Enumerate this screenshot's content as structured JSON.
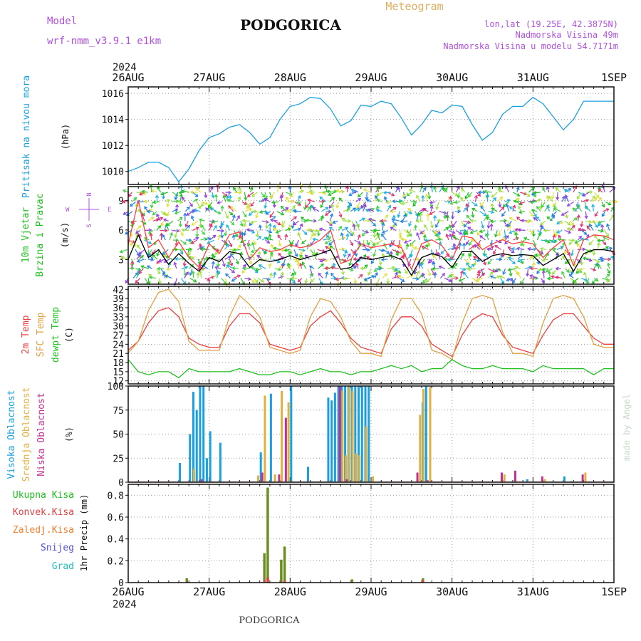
{
  "header": {
    "model_label": "Model",
    "model_name": "wrf-nmm_v3.9.1 e1km",
    "city": "PODGORICA",
    "meteogram": "Meteogram",
    "coords": "lon,lat (19.25E, 42.3875N)",
    "altitude": "Nadmorska Visina 49m",
    "model_altitude": "Nadmorska Visina u modelu 54.7171m",
    "footer_city": "PODGORICA",
    "credit": "made by Angel"
  },
  "colors": {
    "pressure": "#1aa0e0",
    "wind_speed": "#000000",
    "wind_gust": "#ff4040",
    "temp2m": "#e84040",
    "sfc_temp": "#e0a040",
    "dewpt": "#20c020",
    "high_cloud": "#1aa0e0",
    "mid_cloud": "#e0b040",
    "low_cloud": "#c03090",
    "precip_total": "#6a8f20",
    "convective": "#e04040",
    "frozen": "#f08030",
    "snow": "#5050e0",
    "graupel": "#20c0c0",
    "ylabel_pressure": "#1aa0e0",
    "ylabel_wind": "#20c020",
    "ylabel_legend_violet": "#b050e0"
  },
  "chart_data": [
    {
      "type": "line",
      "panel": "pressure",
      "ylabel_lines": [
        "Pritisak na nivou mora"
      ],
      "unit": "(hPa)",
      "yticks": [
        1010,
        1012,
        1014,
        1016
      ],
      "ylim": [
        1009,
        1016.5
      ],
      "x_labels": [
        "26AUG",
        "27AUG",
        "28AUG",
        "29AUG",
        "30AUG",
        "31AUG",
        "1SEP"
      ],
      "year": "2024",
      "x_hours": [
        0,
        3,
        6,
        9,
        12,
        15,
        18,
        21,
        24,
        27,
        30,
        33,
        36,
        39,
        42,
        45,
        48,
        51,
        54,
        57,
        60,
        63,
        66,
        69,
        72,
        75,
        78,
        81,
        84,
        87,
        90,
        93,
        96,
        99,
        102,
        105,
        108,
        111,
        114,
        117,
        120,
        123,
        126,
        129,
        132,
        135,
        138,
        141,
        144
      ],
      "series": [
        {
          "values": [
            1010.0,
            1010.3,
            1010.7,
            1010.7,
            1010.3,
            1009.2,
            1010.2,
            1011.6,
            1012.6,
            1012.9,
            1013.4,
            1013.6,
            1013.0,
            1012.1,
            1012.6,
            1014.0,
            1015.0,
            1015.2,
            1015.7,
            1015.6,
            1014.8,
            1013.5,
            1013.9,
            1015.1,
            1015.0,
            1015.4,
            1015.2,
            1014.1,
            1012.8,
            1013.6,
            1014.7,
            1014.5,
            1015.1,
            1015.0,
            1013.6,
            1012.4,
            1013.0,
            1014.4,
            1015.0,
            1015.0,
            1015.7,
            1015.2,
            1014.2,
            1013.2,
            1014.0,
            1015.4,
            1015.4,
            1015.4,
            1015.4
          ]
        }
      ]
    },
    {
      "type": "line",
      "panel": "wind",
      "ylabel_lines": [
        "10m Vjetar",
        "Brzina i Pravac"
      ],
      "unit": "(m/s)",
      "compass": [
        "N",
        "W",
        "E",
        "S"
      ],
      "yticks": [
        3,
        6,
        9
      ],
      "ylim": [
        0.5,
        10.4
      ],
      "x_hours": [
        0,
        3,
        6,
        9,
        12,
        15,
        18,
        21,
        24,
        27,
        30,
        33,
        36,
        39,
        42,
        45,
        48,
        51,
        54,
        57,
        60,
        63,
        66,
        69,
        72,
        75,
        78,
        81,
        84,
        87,
        90,
        93,
        96,
        99,
        102,
        105,
        108,
        111,
        114,
        117,
        120,
        123,
        126,
        129,
        132,
        135,
        138,
        141,
        144
      ],
      "series": [
        {
          "name": "speed",
          "values": [
            3.0,
            5.5,
            3.2,
            4.0,
            2.5,
            3.6,
            2.6,
            1.8,
            3.2,
            2.8,
            3.8,
            3.6,
            2.2,
            3.0,
            2.8,
            3.0,
            3.4,
            3.0,
            3.3,
            3.6,
            4.0,
            2.0,
            2.2,
            3.2,
            3.0,
            3.2,
            3.4,
            3.0,
            1.4,
            3.2,
            3.6,
            3.3,
            2.2,
            3.8,
            3.8,
            2.8,
            3.4,
            3.6,
            3.4,
            3.5,
            3.4,
            2.4,
            3.0,
            3.6,
            1.8,
            3.6,
            4.0,
            4.0,
            3.8
          ]
        },
        {
          "name": "gust",
          "values": [
            4.5,
            9.0,
            4.2,
            5.0,
            3.2,
            4.8,
            3.2,
            2.2,
            4.6,
            3.6,
            5.5,
            5.8,
            3.0,
            4.2,
            3.8,
            4.0,
            4.5,
            4.2,
            4.4,
            5.0,
            6.0,
            2.6,
            3.0,
            4.6,
            4.2,
            4.4,
            4.6,
            4.2,
            2.0,
            4.6,
            5.0,
            4.4,
            3.0,
            5.4,
            5.2,
            4.0,
            4.6,
            5.0,
            4.6,
            4.8,
            4.6,
            3.2,
            4.2,
            5.0,
            2.4,
            5.0,
            5.5,
            5.4,
            5.0
          ]
        }
      ]
    },
    {
      "type": "line",
      "panel": "temperature",
      "ylabel_lines": [
        "2m Temp",
        "SFC Temp",
        "dewpt Temp"
      ],
      "unit": "(C)",
      "yticks": [
        12,
        15,
        18,
        21,
        24,
        27,
        30,
        33,
        36,
        39,
        42
      ],
      "ylim": [
        11,
        43
      ],
      "x_hours": [
        0,
        3,
        6,
        9,
        12,
        15,
        18,
        21,
        24,
        27,
        30,
        33,
        36,
        39,
        42,
        45,
        48,
        51,
        54,
        57,
        60,
        63,
        66,
        69,
        72,
        75,
        78,
        81,
        84,
        87,
        90,
        93,
        96,
        99,
        102,
        105,
        108,
        111,
        114,
        117,
        120,
        123,
        126,
        129,
        132,
        135,
        138,
        141,
        144
      ],
      "series": [
        {
          "name": "2m Temp",
          "values": [
            22,
            25,
            31,
            35,
            36,
            33,
            26,
            24,
            23,
            23,
            30,
            34,
            34,
            31,
            24,
            23,
            22,
            23,
            30,
            33,
            35,
            31,
            26,
            23,
            22,
            21,
            29,
            33,
            33,
            30,
            24,
            22,
            20,
            27,
            32,
            34,
            33,
            27,
            23,
            22,
            21,
            27,
            32,
            34,
            34,
            30,
            26,
            24,
            24
          ]
        },
        {
          "name": "SFC Temp",
          "values": [
            21,
            25,
            35,
            41,
            42,
            38,
            25,
            22,
            22,
            22,
            33,
            40,
            37,
            33,
            23,
            22,
            21,
            22,
            33,
            39,
            38,
            33,
            25,
            21,
            21,
            20,
            32,
            39,
            39,
            34,
            22,
            21,
            19,
            31,
            39,
            40,
            39,
            28,
            21,
            21,
            20,
            31,
            39,
            40,
            39,
            33,
            24,
            23,
            23
          ]
        },
        {
          "name": "dewpt Temp",
          "values": [
            19,
            15,
            14,
            15,
            15,
            13,
            16,
            15,
            15,
            15,
            15,
            16,
            15,
            14,
            14,
            15,
            15,
            14,
            15,
            16,
            15,
            15,
            14,
            15,
            15,
            16,
            17,
            16,
            17,
            15,
            16,
            16,
            19,
            17,
            16,
            16,
            17,
            16,
            16,
            16,
            15,
            17,
            16,
            16,
            16,
            16,
            14,
            16,
            16
          ]
        }
      ]
    },
    {
      "type": "bar",
      "panel": "clouds",
      "ylabel_lines": [
        "Visoka Oblacnost",
        "Srednja Oblacnost",
        "Niska Oblacnost"
      ],
      "unit": "(%)",
      "yticks": [
        0,
        25,
        50,
        75,
        100
      ],
      "ylim": [
        0,
        100
      ],
      "series": [
        {
          "name": "Visoka Oblacnost",
          "bars": [
            [
              15,
              20
            ],
            [
              18,
              50
            ],
            [
              19,
              94
            ],
            [
              20,
              75
            ],
            [
              21,
              100
            ],
            [
              22,
              100
            ],
            [
              23,
              25
            ],
            [
              24,
              53
            ],
            [
              27,
              41
            ],
            [
              39,
              31
            ],
            [
              42,
              92
            ],
            [
              48,
              100
            ],
            [
              53,
              16
            ],
            [
              59,
              88
            ],
            [
              60,
              85
            ],
            [
              61,
              93
            ],
            [
              62,
              100
            ],
            [
              63,
              100
            ],
            [
              64,
              100
            ],
            [
              65,
              100
            ],
            [
              66,
              100
            ],
            [
              67,
              100
            ],
            [
              68,
              100
            ],
            [
              69,
              100
            ],
            [
              70,
              100
            ],
            [
              71,
              100
            ],
            [
              87,
              83
            ],
            [
              88,
              100
            ],
            [
              118,
              3
            ],
            [
              129,
              6
            ],
            [
              131,
              1
            ]
          ]
        },
        {
          "name": "Srednja Oblacnost",
          "bars": [
            [
              19,
              14
            ],
            [
              38,
              7
            ],
            [
              40,
              90
            ],
            [
              43,
              8
            ],
            [
              45,
              95
            ],
            [
              47,
              83
            ],
            [
              63,
              95
            ],
            [
              64,
              28
            ],
            [
              65,
              99
            ],
            [
              66,
              95
            ],
            [
              67,
              30
            ],
            [
              68,
              28
            ],
            [
              70,
              58
            ],
            [
              72,
              6
            ],
            [
              86,
              70
            ],
            [
              87,
              97
            ],
            [
              89,
              99
            ],
            [
              111,
              8
            ],
            [
              123,
              3
            ],
            [
              135,
              10
            ]
          ]
        },
        {
          "name": "Niska Oblacnost",
          "bars": [
            [
              21,
              3
            ],
            [
              39,
              10
            ],
            [
              44,
              8
            ],
            [
              46,
              67
            ],
            [
              62,
              100
            ],
            [
              64,
              3
            ],
            [
              85,
              10
            ],
            [
              88,
              2
            ],
            [
              110,
              10
            ],
            [
              114,
              12
            ],
            [
              122,
              6
            ],
            [
              134,
              8
            ]
          ]
        }
      ]
    },
    {
      "type": "bar",
      "panel": "precip",
      "legend": [
        "Ukupna Kisa",
        "Konvek.Kisa",
        "Zaledj.Kisa",
        "Snijeg",
        "Grad"
      ],
      "unit": "1hr Precip (mm)",
      "yticks": [
        0,
        0.2,
        0.4,
        0.6,
        0.8
      ],
      "ylim": [
        0,
        0.9
      ],
      "series": [
        {
          "name": "Ukupna Kisa",
          "bars": [
            [
              17,
              0.04
            ],
            [
              40,
              0.27
            ],
            [
              41,
              0.87
            ],
            [
              45,
              0.21
            ],
            [
              46,
              0.33
            ],
            [
              66,
              0.03
            ],
            [
              87,
              0.04
            ]
          ]
        },
        {
          "name": "Konvek.Kisa",
          "bars": [
            [
              17,
              0.01
            ],
            [
              40,
              0.02
            ],
            [
              41,
              0.05
            ],
            [
              46,
              0.02
            ],
            [
              87,
              0.02
            ]
          ]
        },
        {
          "name": "Zaledj.Kisa",
          "bars": []
        },
        {
          "name": "Snijeg",
          "bars": []
        },
        {
          "name": "Grad",
          "bars": []
        }
      ]
    }
  ]
}
